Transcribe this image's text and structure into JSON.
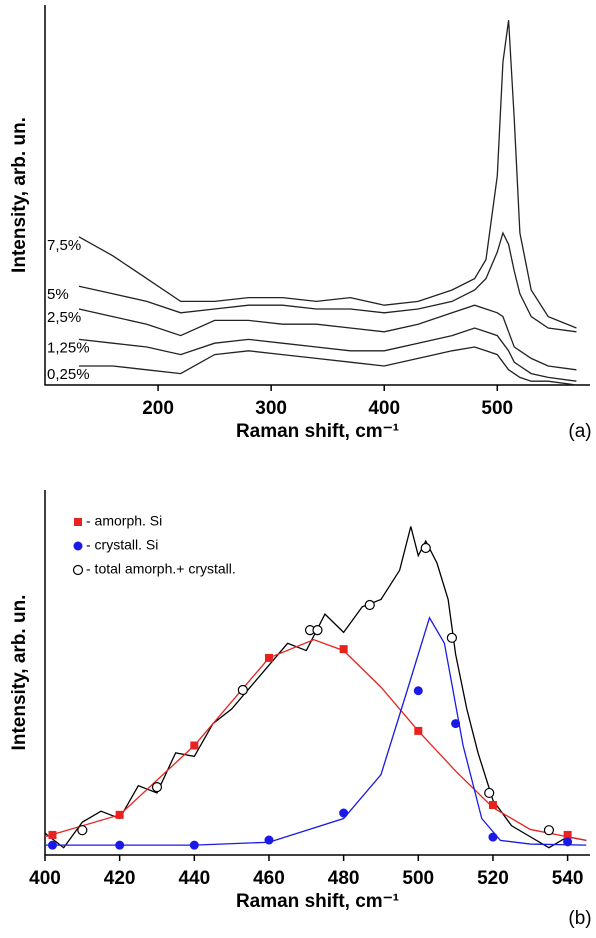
{
  "chart_data": [
    {
      "type": "line",
      "x_label": "Raman shift, cm⁻¹",
      "y_label": "Intensity, arb. un.",
      "panel_label": "(a)",
      "xlim": [
        100,
        582
      ],
      "xticks": [
        200,
        300,
        400,
        500
      ],
      "ylim": [
        0,
        100
      ],
      "x": [
        130,
        160,
        190,
        220,
        250,
        280,
        310,
        340,
        370,
        400,
        430,
        460,
        480,
        490,
        500,
        505,
        510,
        515,
        520,
        530,
        545,
        570
      ],
      "series": [
        {
          "name": "7,5%",
          "color": "#222",
          "values": [
            39,
            34,
            28,
            22,
            22,
            23,
            23,
            22,
            23,
            21,
            22,
            25,
            28,
            33,
            55,
            85,
            96,
            70,
            40,
            25,
            18,
            15
          ]
        },
        {
          "name": "5%",
          "color": "#222",
          "values": [
            26,
            24,
            22,
            19,
            20,
            21,
            21,
            20,
            20,
            19,
            20,
            22,
            25,
            28,
            35,
            40,
            37,
            30,
            24,
            18,
            15,
            14
          ]
        },
        {
          "name": "2,5%",
          "color": "#222",
          "values": [
            20,
            18,
            16,
            13,
            17,
            17,
            16,
            16,
            15,
            14,
            16,
            19,
            21,
            20,
            19,
            18,
            14,
            10,
            9,
            7,
            5,
            4
          ]
        },
        {
          "name": "1,25%",
          "color": "#222",
          "values": [
            12,
            11,
            10,
            8,
            11,
            12,
            11,
            10,
            9,
            9,
            11,
            13,
            15,
            14,
            13,
            11,
            9,
            6,
            5,
            3,
            2,
            1
          ]
        },
        {
          "name": "0,25%",
          "color": "#222",
          "values": [
            5,
            5,
            4,
            3,
            8,
            9,
            8,
            7,
            6,
            5,
            7,
            9,
            10,
            9,
            8,
            6,
            4,
            3,
            2,
            1,
            1,
            0
          ]
        }
      ]
    },
    {
      "type": "line",
      "x_label": "Raman shift, cm⁻¹",
      "y_label": "Intensity, arb. un.",
      "panel_label": "(b)",
      "xlim": [
        400,
        546
      ],
      "xticks": [
        400,
        420,
        440,
        460,
        480,
        500,
        520,
        540
      ],
      "ylim": [
        0,
        100
      ],
      "series": [
        {
          "color": "#000",
          "x": [
            400,
            405,
            410,
            415,
            420,
            425,
            430,
            435,
            440,
            445,
            450,
            455,
            460,
            465,
            470,
            475,
            480,
            485,
            490,
            495,
            498,
            500,
            502,
            505,
            508,
            510,
            513,
            516,
            520,
            525,
            530,
            535,
            540,
            545
          ],
          "values": [
            6,
            2,
            9,
            12,
            10,
            19,
            17,
            28,
            27,
            36,
            40,
            46,
            52,
            58,
            56,
            66,
            61,
            68,
            70,
            78,
            90,
            82,
            86,
            80,
            70,
            55,
            40,
            28,
            15,
            8,
            5,
            2,
            5,
            4
          ]
        },
        {
          "color": "#e8231f",
          "x": [
            400,
            420,
            440,
            460,
            472,
            480,
            490,
            500,
            510,
            520,
            530,
            540,
            545
          ],
          "values": [
            5,
            11,
            30,
            54,
            59,
            56,
            46,
            34,
            23,
            13,
            7,
            5,
            4
          ]
        },
        {
          "color": "#1a1ae6",
          "x": [
            400,
            440,
            460,
            480,
            490,
            497,
            503,
            507,
            512,
            517,
            522,
            530,
            545
          ],
          "values": [
            2.7,
            2.7,
            3.5,
            10,
            22,
            45,
            65,
            58,
            30,
            10,
            4,
            3,
            2.7
          ]
        },
        {
          "name": "- amorph. Si",
          "color": "#e8231f",
          "marker": "square",
          "x": [
            402,
            420,
            440,
            460,
            480,
            500,
            520,
            540
          ],
          "values": [
            5.5,
            11,
            30,
            54,
            56.4,
            34,
            13.7,
            5.5
          ]
        },
        {
          "name": "- crystall.  Si",
          "color": "#1a1ae6",
          "marker": "circle",
          "x": [
            402,
            420,
            440,
            460,
            480,
            500,
            510,
            520,
            540
          ],
          "values": [
            2.7,
            2.7,
            2.7,
            4.1,
            11.5,
            45,
            36,
            4.9,
            3.6
          ]
        },
        {
          "name": "- total amorph.+ crystall.",
          "color": "#000",
          "marker": "open-circle",
          "x": [
            410,
            430,
            453,
            471,
            473,
            487,
            502,
            509,
            519,
            535
          ],
          "values": [
            6.8,
            18.6,
            45.2,
            61.6,
            61.6,
            68.5,
            84.1,
            59.5,
            17,
            6.8
          ]
        }
      ]
    }
  ]
}
